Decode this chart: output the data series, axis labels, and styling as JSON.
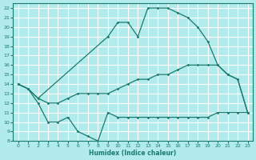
{
  "xlabel": "Humidex (Indice chaleur)",
  "bg_color": "#b2ebeb",
  "grid_color": "#ffffff",
  "line_color": "#1a7a6e",
  "xlim": [
    -0.5,
    23.5
  ],
  "ylim": [
    8,
    22.5
  ],
  "xticks": [
    0,
    1,
    2,
    3,
    4,
    5,
    6,
    7,
    8,
    9,
    10,
    11,
    12,
    13,
    14,
    15,
    16,
    17,
    18,
    19,
    20,
    21,
    22,
    23
  ],
  "yticks": [
    8,
    9,
    10,
    11,
    12,
    13,
    14,
    15,
    16,
    17,
    18,
    19,
    20,
    21,
    22
  ],
  "line1_x": [
    0,
    1,
    2,
    3,
    4,
    5,
    6,
    7,
    8,
    9,
    10,
    11,
    12,
    13,
    14,
    15,
    16,
    17,
    18,
    19,
    20,
    21,
    22,
    23
  ],
  "line1_y": [
    14,
    13.5,
    12,
    10,
    10,
    10.5,
    9.0,
    8.5,
    8.0,
    11,
    10.5,
    10.5,
    10.5,
    10.5,
    10.5,
    10.5,
    10.5,
    10.5,
    10.5,
    10.5,
    11,
    11,
    11,
    11
  ],
  "line2_x": [
    0,
    1,
    2,
    3,
    4,
    5,
    6,
    7,
    8,
    9,
    10,
    11,
    12,
    13,
    14,
    15,
    16,
    17,
    18,
    19,
    20,
    21,
    22,
    23
  ],
  "line2_y": [
    14,
    13.5,
    12.5,
    12.0,
    12.0,
    12.5,
    13.0,
    13.0,
    13.0,
    13.0,
    13.5,
    14.0,
    14.5,
    14.5,
    15.0,
    15.0,
    15.5,
    16.0,
    16.0,
    16.0,
    16.0,
    15.0,
    14.5,
    11
  ],
  "line3_x": [
    0,
    1,
    2,
    9,
    10,
    11,
    12,
    13,
    14,
    15,
    16,
    17,
    18,
    19,
    20,
    21,
    22,
    23
  ],
  "line3_y": [
    14,
    13.5,
    12.5,
    19.0,
    20.5,
    20.5,
    19.0,
    22.0,
    22.0,
    22.0,
    21.5,
    21.0,
    20.0,
    18.5,
    16.0,
    15.0,
    14.5,
    11.0
  ]
}
